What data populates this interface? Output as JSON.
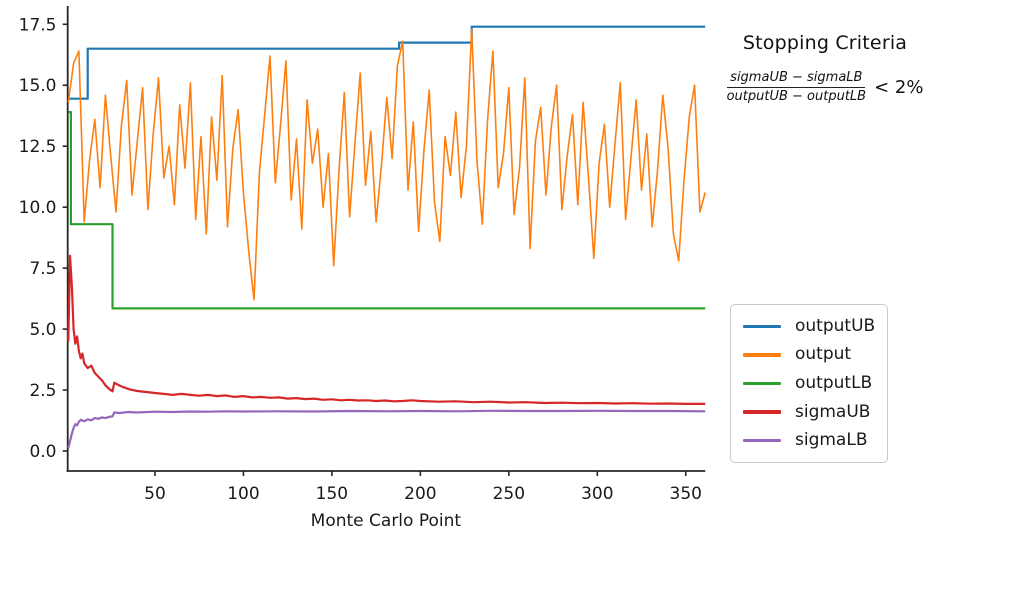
{
  "annotation": {
    "title": "Stopping Criteria",
    "numerator": "sigmaUB − sigmaLB",
    "denominator": "outputUB − outputLB",
    "comparison": "< 2%"
  },
  "chart_data": {
    "type": "line",
    "title": "",
    "xlabel": "Monte Carlo Point",
    "ylabel": "",
    "xlim": [
      0,
      362
    ],
    "ylim": [
      -0.82,
      18.25
    ],
    "xticks": [
      50,
      100,
      150,
      200,
      250,
      300,
      350
    ],
    "yticks": [
      0.0,
      2.5,
      5.0,
      7.5,
      10.0,
      12.5,
      15.0,
      17.5
    ],
    "grid": false,
    "legend_position": "outside-right",
    "series": [
      {
        "name": "outputUB",
        "color": "#1f77b4",
        "style": "step",
        "points": [
          [
            1,
            14.45
          ],
          [
            12,
            14.45
          ],
          [
            12,
            16.5
          ],
          [
            188,
            16.5
          ],
          [
            188,
            16.75
          ],
          [
            229,
            16.75
          ],
          [
            229,
            17.4
          ],
          [
            361,
            17.4
          ]
        ]
      },
      {
        "name": "output",
        "color": "#ff7f0e",
        "style": "noisy-line",
        "x_start": 1,
        "x_step": 3,
        "values": [
          14.3,
          15.9,
          16.4,
          9.4,
          11.9,
          13.6,
          10.8,
          14.6,
          12.1,
          9.8,
          13.3,
          15.2,
          10.5,
          12.7,
          14.9,
          9.9,
          13.0,
          15.3,
          11.2,
          12.5,
          10.1,
          14.2,
          11.6,
          15.1,
          9.5,
          12.9,
          8.9,
          13.7,
          11.1,
          15.4,
          9.2,
          12.4,
          14.0,
          10.6,
          8.2,
          6.2,
          11.4,
          13.8,
          16.2,
          11.0,
          13.4,
          16.0,
          10.3,
          12.8,
          9.1,
          14.4,
          11.8,
          13.2,
          10.0,
          12.2,
          7.6,
          11.5,
          14.7,
          9.6,
          12.6,
          15.5,
          10.9,
          13.1,
          9.4,
          11.7,
          14.5,
          12.0,
          15.8,
          16.8,
          10.7,
          13.5,
          9.0,
          12.3,
          14.8,
          10.2,
          8.6,
          12.9,
          11.3,
          13.9,
          10.4,
          12.5,
          17.3,
          11.9,
          9.3,
          13.6,
          16.4,
          10.8,
          12.2,
          14.9,
          9.7,
          11.6,
          15.3,
          8.3,
          12.7,
          14.1,
          10.5,
          13.3,
          15.0,
          9.9,
          12.1,
          13.8,
          10.1,
          14.3,
          11.2,
          7.9,
          11.8,
          13.4,
          10.0,
          12.6,
          15.1,
          9.5,
          12.0,
          14.4,
          10.7,
          13.0,
          9.2,
          11.5,
          14.6,
          12.4,
          8.9,
          7.8,
          11.1,
          13.7,
          15.0,
          9.8,
          10.6
        ]
      },
      {
        "name": "outputLB",
        "color": "#2ca02c",
        "style": "step",
        "points": [
          [
            1,
            13.9
          ],
          [
            2.5,
            13.9
          ],
          [
            2.5,
            9.3
          ],
          [
            26,
            9.3
          ],
          [
            26,
            5.85
          ],
          [
            361,
            5.85
          ]
        ]
      },
      {
        "name": "sigmaUB",
        "color": "#d62728",
        "style": "line",
        "points": [
          [
            1,
            4.5
          ],
          [
            2,
            8.0
          ],
          [
            3,
            6.8
          ],
          [
            4,
            5.0
          ],
          [
            5,
            4.4
          ],
          [
            6,
            4.7
          ],
          [
            7,
            4.1
          ],
          [
            8,
            3.8
          ],
          [
            9,
            4.0
          ],
          [
            10,
            3.6
          ],
          [
            12,
            3.4
          ],
          [
            14,
            3.5
          ],
          [
            16,
            3.2
          ],
          [
            18,
            3.05
          ],
          [
            20,
            2.9
          ],
          [
            22,
            2.7
          ],
          [
            24,
            2.55
          ],
          [
            26,
            2.45
          ],
          [
            27,
            2.8
          ],
          [
            29,
            2.72
          ],
          [
            32,
            2.62
          ],
          [
            36,
            2.52
          ],
          [
            40,
            2.46
          ],
          [
            45,
            2.42
          ],
          [
            50,
            2.38
          ],
          [
            55,
            2.34
          ],
          [
            60,
            2.3
          ],
          [
            65,
            2.34
          ],
          [
            70,
            2.3
          ],
          [
            75,
            2.27
          ],
          [
            80,
            2.3
          ],
          [
            85,
            2.25
          ],
          [
            90,
            2.28
          ],
          [
            95,
            2.22
          ],
          [
            100,
            2.25
          ],
          [
            105,
            2.2
          ],
          [
            110,
            2.22
          ],
          [
            115,
            2.18
          ],
          [
            120,
            2.2
          ],
          [
            125,
            2.15
          ],
          [
            130,
            2.17
          ],
          [
            135,
            2.13
          ],
          [
            140,
            2.15
          ],
          [
            145,
            2.1
          ],
          [
            150,
            2.12
          ],
          [
            155,
            2.08
          ],
          [
            160,
            2.1
          ],
          [
            165,
            2.07
          ],
          [
            170,
            2.08
          ],
          [
            175,
            2.05
          ],
          [
            180,
            2.07
          ],
          [
            185,
            2.04
          ],
          [
            190,
            2.05
          ],
          [
            195,
            2.08
          ],
          [
            200,
            2.05
          ],
          [
            210,
            2.02
          ],
          [
            220,
            2.04
          ],
          [
            230,
            2.0
          ],
          [
            240,
            2.02
          ],
          [
            250,
            1.99
          ],
          [
            260,
            2.0
          ],
          [
            270,
            1.97
          ],
          [
            280,
            1.98
          ],
          [
            290,
            1.96
          ],
          [
            300,
            1.97
          ],
          [
            310,
            1.95
          ],
          [
            320,
            1.96
          ],
          [
            330,
            1.94
          ],
          [
            340,
            1.95
          ],
          [
            350,
            1.93
          ],
          [
            361,
            1.93
          ]
        ]
      },
      {
        "name": "sigmaLB",
        "color": "#9467bd",
        "style": "line",
        "points": [
          [
            1,
            0.12
          ],
          [
            2,
            0.4
          ],
          [
            3,
            0.7
          ],
          [
            4,
            0.95
          ],
          [
            5,
            1.1
          ],
          [
            6,
            1.05
          ],
          [
            7,
            1.2
          ],
          [
            8,
            1.28
          ],
          [
            10,
            1.22
          ],
          [
            12,
            1.3
          ],
          [
            14,
            1.26
          ],
          [
            16,
            1.35
          ],
          [
            18,
            1.32
          ],
          [
            20,
            1.38
          ],
          [
            22,
            1.35
          ],
          [
            24,
            1.4
          ],
          [
            26,
            1.42
          ],
          [
            27,
            1.58
          ],
          [
            30,
            1.56
          ],
          [
            35,
            1.6
          ],
          [
            40,
            1.58
          ],
          [
            50,
            1.61
          ],
          [
            60,
            1.6
          ],
          [
            70,
            1.62
          ],
          [
            80,
            1.61
          ],
          [
            90,
            1.63
          ],
          [
            100,
            1.62
          ],
          [
            120,
            1.63
          ],
          [
            140,
            1.62
          ],
          [
            160,
            1.64
          ],
          [
            180,
            1.63
          ],
          [
            200,
            1.64
          ],
          [
            220,
            1.63
          ],
          [
            240,
            1.65
          ],
          [
            260,
            1.64
          ],
          [
            280,
            1.64
          ],
          [
            300,
            1.65
          ],
          [
            320,
            1.64
          ],
          [
            340,
            1.64
          ],
          [
            361,
            1.63
          ]
        ]
      }
    ]
  }
}
